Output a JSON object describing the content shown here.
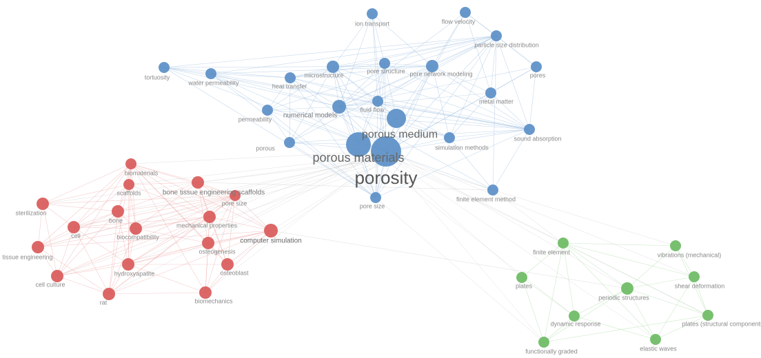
{
  "clusters": [
    {
      "color": "#5b8fc7",
      "edge": "#9fbfe0",
      "nodes": [
        {
          "label": "porosity"
        },
        {
          "label": "porous materials"
        },
        {
          "label": "porous medium"
        },
        {
          "label": "numerical models"
        },
        {
          "label": "ion transport"
        },
        {
          "label": "flow velocity"
        },
        {
          "label": "particle size distribution"
        },
        {
          "label": "pores"
        },
        {
          "label": "metal matter"
        },
        {
          "label": "sound absorption"
        },
        {
          "label": "simulation methods"
        },
        {
          "label": "finite element method"
        },
        {
          "label": "pore size"
        },
        {
          "label": "porous"
        },
        {
          "label": "permeability"
        },
        {
          "label": "heat transfer"
        },
        {
          "label": "microstructure"
        },
        {
          "label": "pore structure"
        },
        {
          "label": "pore network modeling"
        },
        {
          "label": "fluid flow"
        },
        {
          "label": "tortuosity"
        },
        {
          "label": "water permeability"
        }
      ]
    },
    {
      "color": "#d95a5a",
      "edge": "#f0a8a8",
      "nodes": [
        {
          "label": "biomaterials"
        },
        {
          "label": "scaffolds"
        },
        {
          "label": "bone tissue engineering scaffolds"
        },
        {
          "label": "pore size"
        },
        {
          "label": "sterilization"
        },
        {
          "label": "bone"
        },
        {
          "label": "mechanical properties"
        },
        {
          "label": "cell"
        },
        {
          "label": "biocompatibility"
        },
        {
          "label": "computer simulation"
        },
        {
          "label": "osteogenesis"
        },
        {
          "label": "tissue engineering"
        },
        {
          "label": "hydroxyapatite"
        },
        {
          "label": "osteoblast"
        },
        {
          "label": "cell culture"
        },
        {
          "label": "rat"
        },
        {
          "label": "biomechanics"
        }
      ]
    },
    {
      "color": "#6cbb63",
      "edge": "#a9dba3",
      "nodes": [
        {
          "label": "finite element"
        },
        {
          "label": "vibrations (mechanical)"
        },
        {
          "label": "plates"
        },
        {
          "label": "periodic structures"
        },
        {
          "label": "shear deformation"
        },
        {
          "label": "dynamic response"
        },
        {
          "label": "plates (structural components)"
        },
        {
          "label": "functionally graded"
        },
        {
          "label": "elastic waves"
        }
      ]
    }
  ]
}
